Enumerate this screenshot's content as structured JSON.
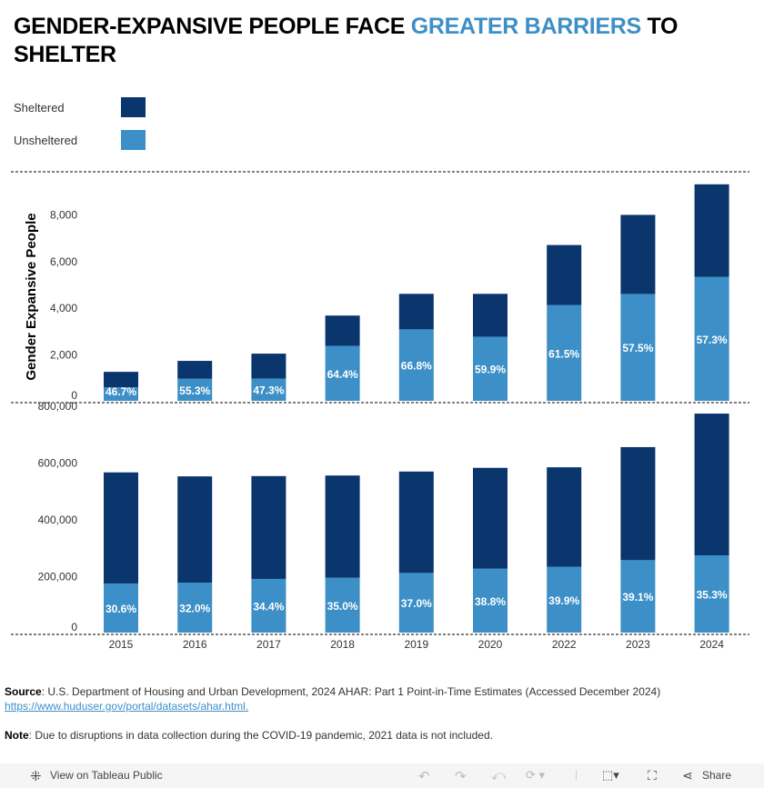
{
  "title": {
    "part1": "GENDER-EXPANSIVE PEOPLE FACE ",
    "highlight": "GREATER BARRIERS",
    "part2": " TO SHELTER"
  },
  "colors": {
    "sheltered": "#0a356d",
    "unsheltered": "#3d8fc7",
    "highlight": "#3d8fc7"
  },
  "legend": [
    {
      "label": "Sheltered",
      "color": "#0a356d"
    },
    {
      "label": "Unsheltered",
      "color": "#3d8fc7"
    }
  ],
  "chart_data": [
    {
      "type": "bar",
      "stacked": true,
      "ylabel": "Gender Expansive People",
      "ylim": [
        0,
        9400
      ],
      "yticks": [
        0,
        2000,
        4000,
        6000,
        8000
      ],
      "ytick_labels": [
        "0",
        "2,000",
        "4,000",
        "6,000",
        "8,000"
      ],
      "categories": [
        "2015",
        "2016",
        "2017",
        "2018",
        "2019",
        "2020",
        "2022",
        "2023",
        "2024"
      ],
      "series": [
        {
          "name": "Unsheltered",
          "values": [
            580,
            945,
            955,
            2350,
            3060,
            2745,
            4100,
            4575,
            5310
          ]
        },
        {
          "name": "Sheltered",
          "values": [
            660,
            765,
            1065,
            1300,
            1520,
            1835,
            2570,
            3385,
            3960
          ]
        }
      ],
      "data_labels": [
        "46.7%",
        "55.3%",
        "47.3%",
        "64.4%",
        "66.8%",
        "59.9%",
        "61.5%",
        "57.5%",
        "57.3%"
      ]
    },
    {
      "type": "bar",
      "stacked": true,
      "ylabel": "",
      "ylim": [
        0,
        800000
      ],
      "yticks": [
        0,
        200000,
        400000,
        600000,
        800000
      ],
      "ytick_labels": [
        "0",
        "200,000",
        "400,000",
        "600,000",
        "800,000"
      ],
      "categories": [
        "2015",
        "2016",
        "2017",
        "2018",
        "2019",
        "2020",
        "2022",
        "2023",
        "2024"
      ],
      "series": [
        {
          "name": "Unsheltered",
          "values": [
            173000,
            176000,
            189000,
            193000,
            210000,
            225000,
            232000,
            255000,
            272000
          ]
        },
        {
          "name": "Sheltered",
          "values": [
            391000,
            374000,
            362000,
            360000,
            357000,
            355000,
            350000,
            398000,
            499000
          ]
        }
      ],
      "data_labels": [
        "30.6%",
        "32.0%",
        "34.4%",
        "35.0%",
        "37.0%",
        "38.8%",
        "39.9%",
        "39.1%",
        "35.3%"
      ]
    }
  ],
  "footer": {
    "source_label": "Source",
    "source_text": ": U.S. Department of Housing and Urban Development, 2024 AHAR: Part 1 Point-in-Time Estimates (Accessed December 2024)",
    "source_link": "https://www.huduser.gov/portal/datasets/ahar.html.",
    "note_label": "Note",
    "note_text": ": Due to disruptions in data collection during the COVID-19 pandemic, 2021 data is not included."
  },
  "toolbar": {
    "view_label": "View on Tableau Public",
    "share_label": "Share"
  }
}
